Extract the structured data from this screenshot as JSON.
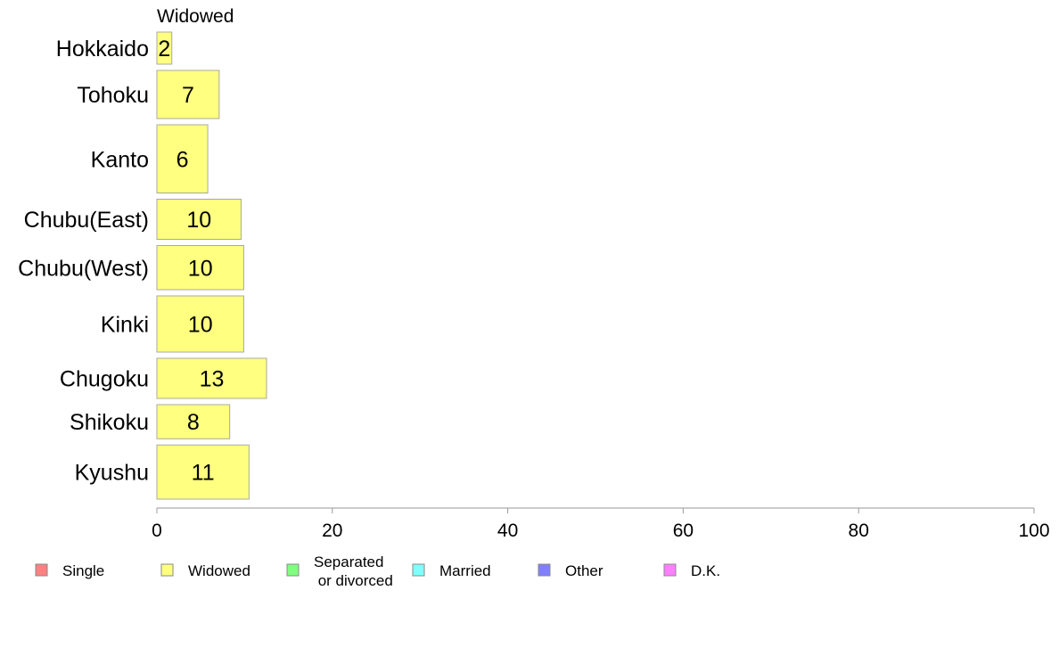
{
  "chart_data": {
    "type": "bar",
    "orientation": "horizontal",
    "panel_title": "Widowed",
    "categories": [
      "Hokkaido",
      "Tohoku",
      "Kanto",
      "Chubu(East)",
      "Chubu(West)",
      "Kinki",
      "Chugoku",
      "Shikoku",
      "Kyushu"
    ],
    "series": [
      {
        "name": "Widowed",
        "color": "#ffff80",
        "values": [
          1.7,
          7.1,
          5.8,
          9.6,
          9.9,
          9.9,
          12.5,
          8.3,
          10.5
        ],
        "labels": [
          "2",
          "7",
          "6",
          "10",
          "10",
          "10",
          "13",
          "8",
          "11"
        ]
      }
    ],
    "bar_weights": [
      0.8,
      1.2,
      1.7,
      1.0,
      1.1,
      1.4,
      1.0,
      0.85,
      1.35
    ],
    "xlim": [
      0,
      100
    ],
    "xticks": [
      0,
      20,
      40,
      60,
      80,
      100
    ],
    "xlabel": "",
    "ylabel": "",
    "grid": false,
    "legend_position": "bottom",
    "legend": [
      {
        "label": "Single",
        "color": "#ff8080"
      },
      {
        "label": "Widowed",
        "color": "#ffff80"
      },
      {
        "label": "Separated\n or divorced",
        "color": "#80ff80"
      },
      {
        "label": "Married",
        "color": "#80ffff"
      },
      {
        "label": "Other",
        "color": "#8080ff"
      },
      {
        "label": "D.K.",
        "color": "#ff80ff"
      }
    ]
  }
}
